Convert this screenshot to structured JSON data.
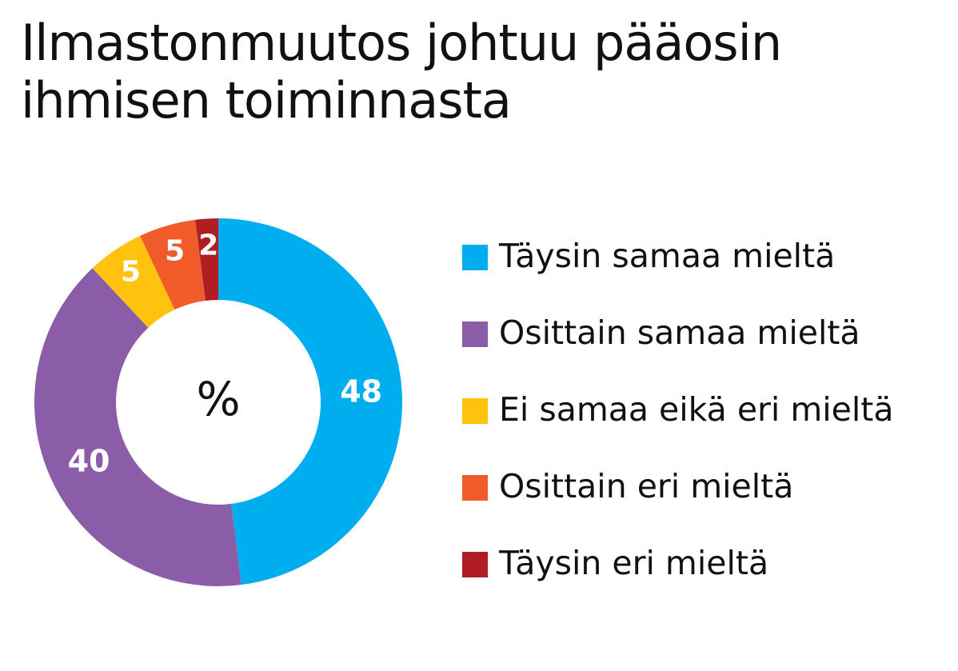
{
  "title": {
    "line1": "Ilmastonmuutos johtuu pääosin",
    "line2": "ihmisen toiminnasta"
  },
  "chart_data": {
    "type": "pie",
    "style": "donut",
    "title": "Ilmastonmuutos johtuu pääosin ihmisen toiminnasta",
    "center_label": "%",
    "unit": "%",
    "legend_position": "right",
    "categories": [
      "Täysin samaa mieltä",
      "Osittain samaa mieltä",
      "Ei samaa eikä eri mieltä",
      "Osittain eri mieltä",
      "Täysin eri mieltä"
    ],
    "values": [
      48,
      40,
      5,
      5,
      2
    ],
    "colors": [
      "#00aeef",
      "#8b5ca8",
      "#ffc20e",
      "#f15a29",
      "#b01e23"
    ],
    "data_labels": [
      "48",
      "40",
      "5",
      "5",
      "2"
    ]
  }
}
